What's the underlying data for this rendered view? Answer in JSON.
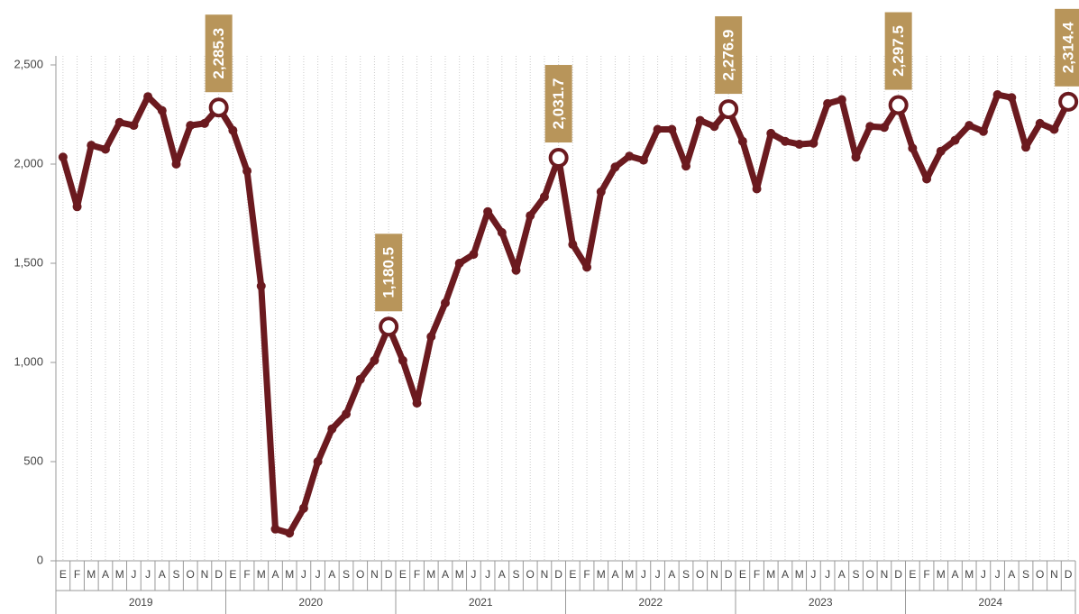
{
  "chart_data": {
    "type": "line",
    "categories": [
      "E",
      "F",
      "M",
      "A",
      "M",
      "J",
      "J",
      "A",
      "S",
      "O",
      "N",
      "D",
      "E",
      "F",
      "M",
      "A",
      "M",
      "J",
      "J",
      "A",
      "S",
      "O",
      "N",
      "D",
      "E",
      "F",
      "M",
      "A",
      "M",
      "J",
      "J",
      "A",
      "S",
      "O",
      "N",
      "D",
      "E",
      "F",
      "M",
      "A",
      "M",
      "J",
      "J",
      "A",
      "S",
      "O",
      "N",
      "D",
      "E",
      "F",
      "M",
      "A",
      "M",
      "J",
      "J",
      "A",
      "S",
      "O",
      "N",
      "D",
      "E",
      "F",
      "M",
      "A",
      "M",
      "J",
      "J",
      "A",
      "S",
      "O",
      "N",
      "D"
    ],
    "groups": [
      "2019",
      "2020",
      "2021",
      "2022",
      "2023",
      "2024"
    ],
    "values": [
      2035,
      1785,
      2095,
      2075,
      2210,
      2195,
      2340,
      2270,
      2000,
      2195,
      2205,
      2285.3,
      2170,
      1965,
      1385,
      160,
      140,
      265,
      500,
      665,
      740,
      915,
      1010,
      1180.5,
      1010,
      795,
      1130,
      1300,
      1500,
      1545,
      1760,
      1655,
      1465,
      1740,
      1835,
      2031.7,
      1595,
      1480,
      1860,
      1985,
      2040,
      2020,
      2175,
      2175,
      1990,
      2220,
      2190,
      2276.9,
      2115,
      1875,
      2155,
      2115,
      2100,
      2105,
      2305,
      2325,
      2035,
      2190,
      2185,
      2297.5,
      2080,
      1925,
      2065,
      2120,
      2195,
      2165,
      2350,
      2335,
      2085,
      2205,
      2175,
      2314.4
    ],
    "value_labels": [
      null,
      null,
      null,
      null,
      null,
      null,
      null,
      null,
      null,
      null,
      null,
      "2,285.3",
      null,
      null,
      null,
      null,
      null,
      null,
      null,
      null,
      null,
      null,
      null,
      "1,180.5",
      null,
      null,
      null,
      null,
      null,
      null,
      null,
      null,
      null,
      null,
      null,
      "2,031.7",
      null,
      null,
      null,
      null,
      null,
      null,
      null,
      null,
      null,
      null,
      null,
      "2,276.9",
      null,
      null,
      null,
      null,
      null,
      null,
      null,
      null,
      null,
      null,
      null,
      "2,297.5",
      null,
      null,
      null,
      null,
      null,
      null,
      null,
      null,
      null,
      null,
      null,
      "2,314.4"
    ],
    "color": "#6b1a1f",
    "label_color": "#b8955a",
    "ylim": [
      0,
      2500
    ],
    "yticks": [
      0,
      500,
      {
        "value": 1000,
        "label": "1,000"
      },
      {
        "value": 1500,
        "label": "1,500"
      },
      {
        "value": 2000,
        "label": "2,000"
      },
      {
        "value": 2500,
        "label": "2,500"
      }
    ],
    "grid": true
  }
}
